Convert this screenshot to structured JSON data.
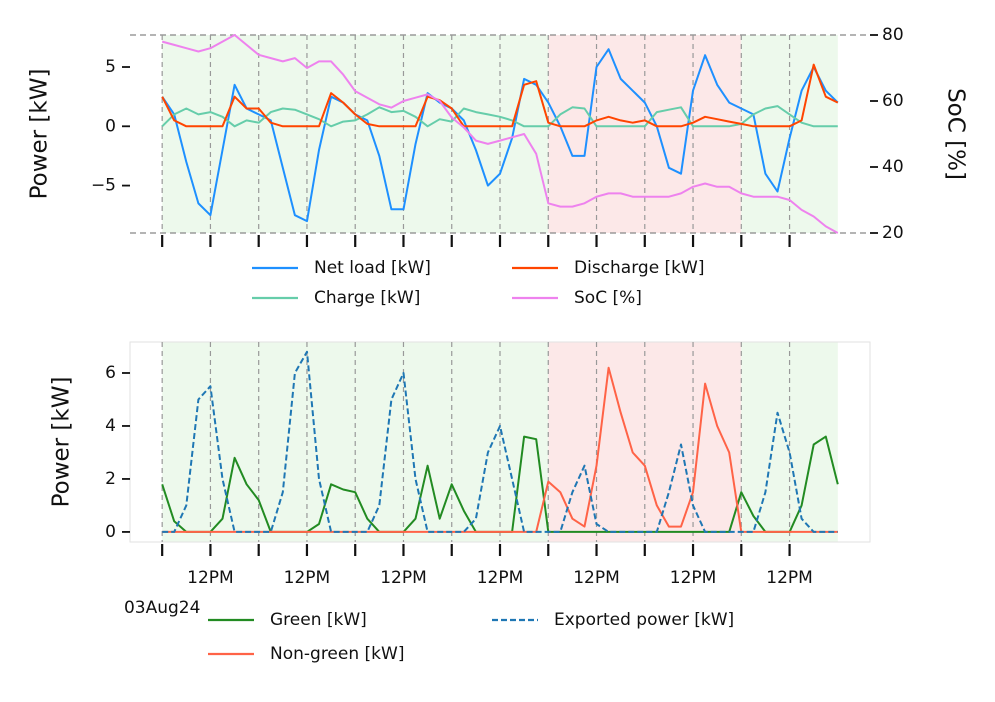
{
  "chart_data": [
    {
      "type": "line",
      "x": [
        "2024-08-03T00:00",
        "2024-08-03T03:00",
        "2024-08-03T06:00",
        "2024-08-03T09:00",
        "2024-08-03T12:00",
        "2024-08-03T15:00",
        "2024-08-03T18:00",
        "2024-08-03T21:00",
        "2024-08-04T00:00",
        "2024-08-04T03:00",
        "2024-08-04T06:00",
        "2024-08-04T09:00",
        "2024-08-04T12:00",
        "2024-08-04T15:00",
        "2024-08-04T18:00",
        "2024-08-04T21:00",
        "2024-08-05T00:00",
        "2024-08-05T03:00",
        "2024-08-05T06:00",
        "2024-08-05T09:00",
        "2024-08-05T12:00",
        "2024-08-05T15:00",
        "2024-08-05T18:00",
        "2024-08-05T21:00",
        "2024-08-06T00:00",
        "2024-08-06T03:00",
        "2024-08-06T06:00",
        "2024-08-06T09:00",
        "2024-08-06T12:00",
        "2024-08-06T15:00",
        "2024-08-06T18:00",
        "2024-08-06T21:00",
        "2024-08-07T00:00",
        "2024-08-07T03:00",
        "2024-08-07T06:00",
        "2024-08-07T09:00",
        "2024-08-07T12:00",
        "2024-08-07T15:00",
        "2024-08-07T18:00",
        "2024-08-07T21:00",
        "2024-08-08T00:00",
        "2024-08-08T03:00",
        "2024-08-08T06:00",
        "2024-08-08T09:00",
        "2024-08-08T12:00",
        "2024-08-08T15:00",
        "2024-08-08T18:00",
        "2024-08-08T21:00",
        "2024-08-09T00:00",
        "2024-08-09T03:00",
        "2024-08-09T06:00",
        "2024-08-09T09:00",
        "2024-08-09T12:00",
        "2024-08-09T15:00",
        "2024-08-09T18:00",
        "2024-08-09T21:00",
        "2024-08-10T00:00"
      ],
      "ylabel": "Power [kW]",
      "y2label": "SoC [%]",
      "xlim": [
        "2024-08-02T16:00",
        "2024-08-10T08:00"
      ],
      "xticks": [
        "2024-08-03T00:00",
        "2024-08-03T12:00",
        "2024-08-04T00:00",
        "2024-08-04T12:00",
        "2024-08-05T00:00",
        "2024-08-05T12:00",
        "2024-08-06T00:00",
        "2024-08-06T12:00",
        "2024-08-07T00:00",
        "2024-08-07T12:00",
        "2024-08-08T00:00",
        "2024-08-08T12:00",
        "2024-08-09T00:00",
        "2024-08-09T12:00"
      ],
      "ylim": [
        -9,
        7.7
      ],
      "yticks": [
        {
          "value": -5,
          "label": "−5"
        },
        0,
        5
      ],
      "y2lim": [
        20,
        80
      ],
      "y2ticks": [
        20,
        40,
        60,
        80
      ],
      "grid": true,
      "frame": "dashed",
      "legend": "lower center",
      "regions": [
        {
          "start": "2024-08-03T00:00",
          "end": "2024-08-07T00:00",
          "color": "#edf9ec"
        },
        {
          "start": "2024-08-07T00:00",
          "end": "2024-08-09T00:00",
          "color": "#fce8e8"
        },
        {
          "start": "2024-08-09T00:00",
          "end": "2024-08-10T00:00",
          "color": "#edf9ec"
        }
      ],
      "series": [
        {
          "name": "Net load [kW]",
          "color": "#1e90ff",
          "values": [
            2.5,
            1,
            -3,
            -6.5,
            -7.5,
            -2,
            3.5,
            1.5,
            1,
            0.5,
            -3.5,
            -7.5,
            -8,
            -2,
            2.5,
            2,
            1,
            0.5,
            -2.5,
            -7,
            -7,
            -1.5,
            2.8,
            2,
            1.5,
            0.5,
            -2,
            -5,
            -4,
            -1,
            4,
            3.5,
            2,
            0,
            -2.5,
            -2.5,
            5,
            6.5,
            4,
            3,
            2,
            0,
            -3.5,
            -4,
            3,
            6,
            3.5,
            2,
            1.5,
            1,
            -4,
            -5.5,
            -1,
            3,
            5,
            3,
            2
          ]
        },
        {
          "name": "Charge [kW]",
          "color": "#66cdaa",
          "values": [
            0,
            1,
            1.5,
            1,
            1.2,
            0.8,
            0,
            0.5,
            0.3,
            1.2,
            1.5,
            1.4,
            1,
            0.6,
            0,
            0.4,
            0.5,
            1,
            1.6,
            1.2,
            1.3,
            0.8,
            0,
            0.6,
            0.4,
            1.5,
            1.2,
            1,
            0.8,
            0.5,
            0,
            0,
            0,
            1,
            1.6,
            1.5,
            0,
            0,
            0,
            0,
            0,
            1.2,
            1.4,
            1.6,
            0,
            0,
            0,
            0,
            0.2,
            1,
            1.5,
            1.7,
            1,
            0.3,
            0,
            0,
            0
          ]
        },
        {
          "name": "Discharge [kW]",
          "color": "#ff4500",
          "values": [
            2.5,
            0.5,
            0,
            0,
            0,
            0,
            2.5,
            1.5,
            1.5,
            0.3,
            0,
            0,
            0,
            0,
            2.8,
            2,
            1,
            0.2,
            0,
            0,
            0,
            0,
            2.5,
            2.2,
            1.5,
            0,
            0,
            0,
            0,
            0,
            3.5,
            3.8,
            0.3,
            0,
            0,
            0,
            0.5,
            0.8,
            0.5,
            0.3,
            0.5,
            0,
            0,
            0,
            0.3,
            0.8,
            0.6,
            0.4,
            0.2,
            0,
            0,
            0,
            0,
            0.5,
            5.2,
            2.5,
            2
          ]
        },
        {
          "name": "SoC [%]",
          "color": "#ee82ee",
          "axis": "y2",
          "values": [
            78,
            77,
            76,
            75,
            76,
            78,
            80,
            77,
            74,
            73,
            72,
            73,
            70,
            72,
            72,
            68,
            63,
            61,
            59,
            58,
            60,
            61,
            62,
            60,
            55,
            52,
            48,
            47,
            48,
            49,
            50,
            44,
            29,
            28,
            28,
            29,
            31,
            32,
            32,
            31,
            31,
            31,
            31,
            32,
            34,
            35,
            34,
            34,
            32,
            31,
            31,
            31,
            30,
            27,
            25,
            22,
            20
          ]
        }
      ]
    },
    {
      "type": "line",
      "x": [
        "2024-08-03T00:00",
        "2024-08-03T03:00",
        "2024-08-03T06:00",
        "2024-08-03T09:00",
        "2024-08-03T12:00",
        "2024-08-03T15:00",
        "2024-08-03T18:00",
        "2024-08-03T21:00",
        "2024-08-04T00:00",
        "2024-08-04T03:00",
        "2024-08-04T06:00",
        "2024-08-04T09:00",
        "2024-08-04T12:00",
        "2024-08-04T15:00",
        "2024-08-04T18:00",
        "2024-08-04T21:00",
        "2024-08-05T00:00",
        "2024-08-05T03:00",
        "2024-08-05T06:00",
        "2024-08-05T09:00",
        "2024-08-05T12:00",
        "2024-08-05T15:00",
        "2024-08-05T18:00",
        "2024-08-05T21:00",
        "2024-08-06T00:00",
        "2024-08-06T03:00",
        "2024-08-06T06:00",
        "2024-08-06T09:00",
        "2024-08-06T12:00",
        "2024-08-06T15:00",
        "2024-08-06T18:00",
        "2024-08-06T21:00",
        "2024-08-07T00:00",
        "2024-08-07T03:00",
        "2024-08-07T06:00",
        "2024-08-07T09:00",
        "2024-08-07T12:00",
        "2024-08-07T15:00",
        "2024-08-07T18:00",
        "2024-08-07T21:00",
        "2024-08-08T00:00",
        "2024-08-08T03:00",
        "2024-08-08T06:00",
        "2024-08-08T09:00",
        "2024-08-08T12:00",
        "2024-08-08T15:00",
        "2024-08-08T18:00",
        "2024-08-08T21:00",
        "2024-08-09T00:00",
        "2024-08-09T03:00",
        "2024-08-09T06:00",
        "2024-08-09T09:00",
        "2024-08-09T12:00",
        "2024-08-09T15:00",
        "2024-08-09T18:00",
        "2024-08-09T21:00",
        "2024-08-10T00:00"
      ],
      "ylabel": "Power [kW]",
      "xlim": [
        "2024-08-02T16:00",
        "2024-08-10T08:00"
      ],
      "xticks": [
        {
          "value": "2024-08-03T00:00",
          "label": "03Aug24"
        },
        {
          "value": "2024-08-03T12:00",
          "label": "12PM"
        },
        "2024-08-04T00:00",
        {
          "value": "2024-08-04T12:00",
          "label": "12PM"
        },
        "2024-08-05T00:00",
        {
          "value": "2024-08-05T12:00",
          "label": "12PM"
        },
        "2024-08-06T00:00",
        {
          "value": "2024-08-06T12:00",
          "label": "12PM"
        },
        "2024-08-07T00:00",
        {
          "value": "2024-08-07T12:00",
          "label": "12PM"
        },
        "2024-08-08T00:00",
        {
          "value": "2024-08-08T12:00",
          "label": "12PM"
        },
        "2024-08-09T00:00",
        {
          "value": "2024-08-09T12:00",
          "label": "12PM"
        }
      ],
      "ylim": [
        -0.38,
        7.17
      ],
      "yticks": [
        0,
        2,
        4,
        6
      ],
      "grid": true,
      "frame": "solid",
      "legend": "lower center",
      "regions": [
        {
          "start": "2024-08-03T00:00",
          "end": "2024-08-07T00:00",
          "color": "#edf9ec"
        },
        {
          "start": "2024-08-07T00:00",
          "end": "2024-08-09T00:00",
          "color": "#fce8e8"
        },
        {
          "start": "2024-08-09T00:00",
          "end": "2024-08-10T00:00",
          "color": "#edf9ec"
        }
      ],
      "series": [
        {
          "name": "Green [kW]",
          "color": "#228b22",
          "values": [
            1.8,
            0.4,
            0,
            0,
            0,
            0.5,
            2.8,
            1.8,
            1.2,
            0,
            0,
            0,
            0,
            0.3,
            1.8,
            1.6,
            1.5,
            0.5,
            0,
            0,
            0,
            0.5,
            2.5,
            0.5,
            1.8,
            0.8,
            0,
            0,
            0,
            0,
            3.6,
            3.5,
            0,
            0,
            0,
            0,
            0,
            0,
            0,
            0,
            0,
            0,
            0,
            0,
            0,
            0,
            0,
            0,
            1.5,
            0.6,
            0,
            0,
            0,
            1,
            3.3,
            3.6,
            1.8
          ]
        },
        {
          "name": "Non-green [kW]",
          "color": "#ff6347",
          "values": [
            0,
            0,
            0,
            0,
            0,
            0,
            0,
            0,
            0,
            0,
            0,
            0,
            0,
            0,
            0,
            0,
            0,
            0,
            0,
            0,
            0,
            0,
            0,
            0,
            0,
            0,
            0,
            0,
            0,
            0,
            0,
            0,
            1.9,
            1.5,
            0.5,
            0.2,
            2.5,
            6.2,
            4.5,
            3,
            2.5,
            1,
            0.2,
            0.2,
            1.5,
            5.6,
            4,
            3,
            0,
            0,
            0,
            0,
            0,
            0,
            0,
            0,
            0
          ]
        },
        {
          "name": "Exported power [kW]",
          "color": "#1f77b4",
          "linestyle": "dashed",
          "values": [
            0,
            0,
            1,
            5,
            5.5,
            2,
            0,
            0,
            0,
            0,
            1.5,
            6,
            6.8,
            2,
            0,
            0,
            0,
            0,
            1,
            5,
            6,
            2,
            0,
            0,
            0,
            0,
            0.5,
            3,
            4,
            2,
            0,
            0,
            0,
            0,
            1.5,
            2.5,
            0.3,
            0,
            0,
            0,
            0,
            0,
            1.5,
            3.3,
            1,
            0,
            0,
            0,
            0,
            0,
            1.5,
            4.5,
            3,
            0.5,
            0,
            0,
            0
          ]
        }
      ]
    }
  ]
}
